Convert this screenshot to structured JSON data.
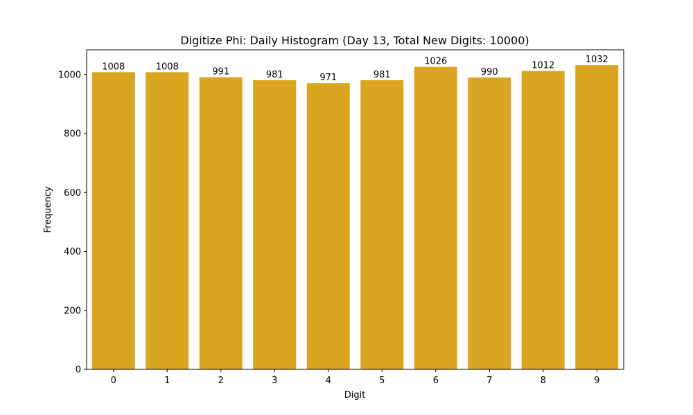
{
  "chart_data": {
    "type": "bar",
    "title": "Digitize Phi: Daily Histogram (Day 13, Total New Digits: 10000)",
    "xlabel": "Digit",
    "ylabel": "Frequency",
    "categories": [
      "0",
      "1",
      "2",
      "3",
      "4",
      "5",
      "6",
      "7",
      "8",
      "9"
    ],
    "values": [
      1008,
      1008,
      991,
      981,
      971,
      981,
      1026,
      990,
      1012,
      1032
    ],
    "bar_labels": [
      "1008",
      "1008",
      "991",
      "981",
      "971",
      "981",
      "1026",
      "990",
      "1012",
      "1032"
    ],
    "yticks": [
      0,
      200,
      400,
      600,
      800,
      1000
    ],
    "ylim": [
      0,
      1084
    ],
    "xlim": [
      -0.5,
      9.5
    ],
    "grid": false,
    "legend": null,
    "bar_color": "#DAA520"
  }
}
